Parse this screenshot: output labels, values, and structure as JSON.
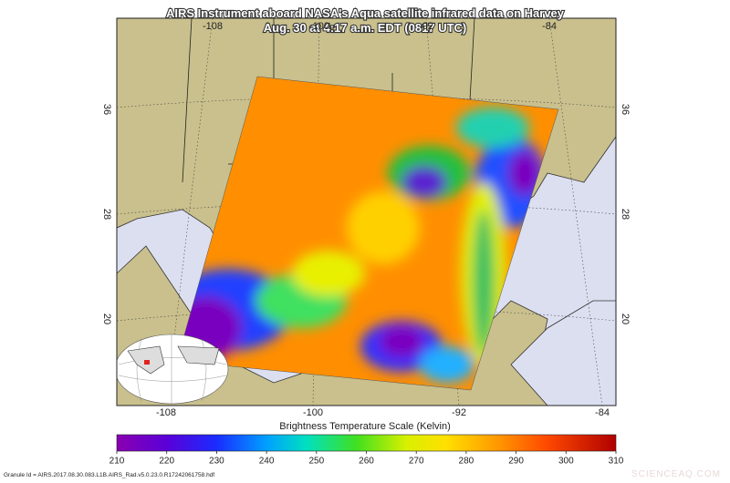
{
  "header": {
    "title_lines": [
      "AIRS Instrument aboard NASA's Aqua satellite infrared data on Harvey",
      "Aug. 30 at 4:17 a.m. EDT (0817 UTC)"
    ]
  },
  "map": {
    "lon_labels_top": [
      "-108",
      "-100",
      "-92",
      "-84"
    ],
    "lon_labels_bottom": [
      "-108",
      "-100",
      "-92",
      "-84"
    ],
    "lat_labels_left": [
      "36",
      "28",
      "20"
    ],
    "lat_labels_right": [
      "36",
      "28",
      "20"
    ]
  },
  "colorbar": {
    "title": "Brightness Temperature Scale (Kelvin)",
    "range": [
      210,
      310
    ],
    "ticks": [
      210,
      220,
      230,
      240,
      250,
      260,
      270,
      280,
      290,
      300,
      310
    ]
  },
  "footer": {
    "granule": "Granule Id = AIRS.2017.08.30.083.L1B.AIRS_Rad.v5.0.23.0.R17242061758.hdf"
  },
  "watermark": "SCIENCEAQ.COM"
}
